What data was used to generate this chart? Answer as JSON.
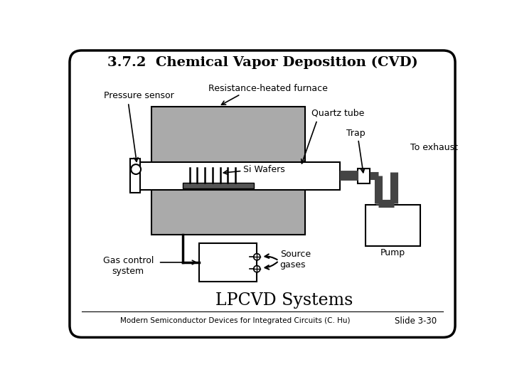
{
  "title": "3.7.2  Chemical Vapor Deposition (CVD)",
  "subtitle": "LPCVD Systems",
  "footer": "Modern Semiconductor Devices for Integrated Circuits (C. Hu)",
  "slide": "Slide 3-30",
  "bg_color": "#ffffff",
  "border_color": "#000000",
  "gray_fill": "#aaaaaa",
  "labels": {
    "pressure_sensor": "Pressure sensor",
    "furnace": "Resistance-heated furnace",
    "quartz_tube": "Quartz tube",
    "trap": "Trap",
    "to_exhaust": "To exhaust",
    "si_wafers": "Si Wafers",
    "pump": "Pump",
    "gas_control": "Gas control\nsystem",
    "source_gases": "Source\ngases"
  }
}
